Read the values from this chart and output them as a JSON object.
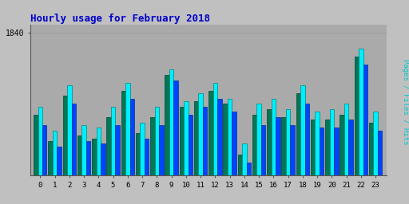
{
  "title": "Hourly usage for February 2018",
  "title_color": "#0000cc",
  "title_fontsize": 9,
  "ytick_label": "1840",
  "background_color": "#c0c0c0",
  "plot_bg_color": "#aaaaaa",
  "hours": [
    0,
    1,
    2,
    3,
    4,
    5,
    6,
    7,
    8,
    9,
    10,
    11,
    12,
    13,
    14,
    15,
    16,
    17,
    18,
    19,
    20,
    21,
    22,
    23
  ],
  "pages": [
    1530,
    1430,
    1600,
    1450,
    1440,
    1520,
    1620,
    1460,
    1520,
    1680,
    1560,
    1580,
    1620,
    1570,
    1380,
    1530,
    1550,
    1520,
    1610,
    1510,
    1510,
    1530,
    1750,
    1500
  ],
  "files": [
    1560,
    1470,
    1640,
    1490,
    1480,
    1560,
    1650,
    1500,
    1560,
    1700,
    1580,
    1610,
    1650,
    1590,
    1420,
    1570,
    1590,
    1550,
    1640,
    1540,
    1550,
    1570,
    1780,
    1540
  ],
  "hits": [
    1490,
    1410,
    1570,
    1430,
    1420,
    1490,
    1590,
    1440,
    1490,
    1660,
    1530,
    1560,
    1590,
    1540,
    1350,
    1490,
    1520,
    1490,
    1570,
    1480,
    1480,
    1510,
    1720,
    1470
  ],
  "pages_color": "#007755",
  "files_color": "#00eeff",
  "hits_color": "#0044ff",
  "bar_edge_color": "#006644",
  "bar_width": 0.3,
  "ymin": 1300,
  "ymax": 1870,
  "ytick_val": 1840,
  "grid_color": "#999999",
  "font_family": "monospace",
  "ylabel_text": "Pages / Files / Hits",
  "ylabel_color": "#00cccc"
}
